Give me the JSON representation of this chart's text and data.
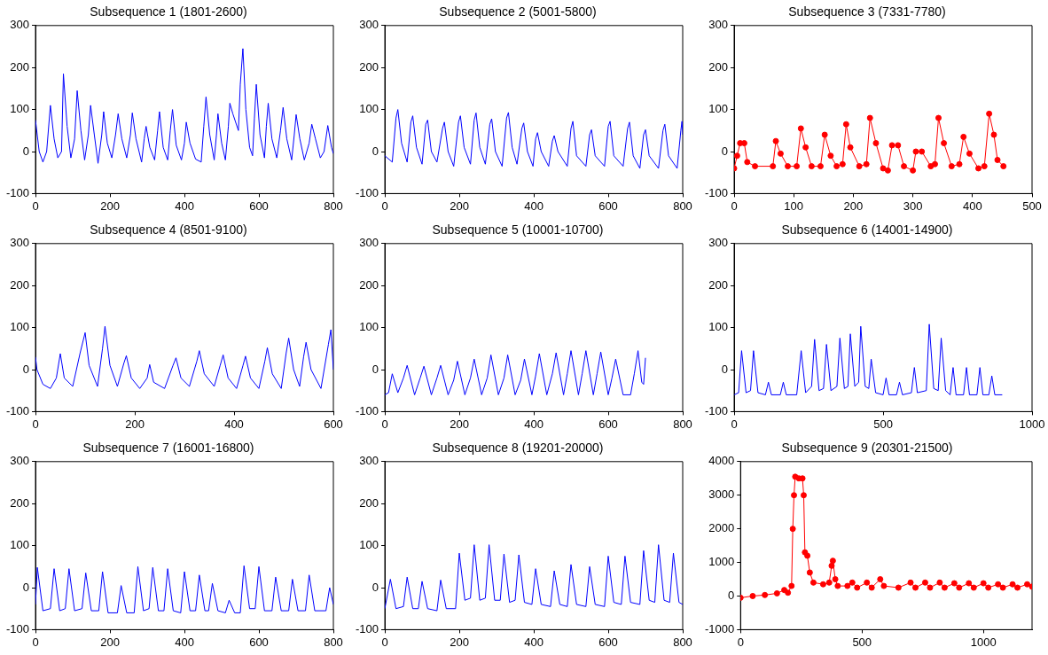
{
  "chart_data": [
    {
      "type": "line",
      "title": "Subsequence 1 (1801-2600)",
      "xlim": [
        0,
        800
      ],
      "xticks": [
        0,
        200,
        400,
        600,
        800
      ],
      "ylim": [
        -100,
        300
      ],
      "yticks": [
        -100,
        0,
        100,
        200,
        300
      ],
      "series": [
        {
          "color": "#0000ff",
          "x": [
            0,
            10,
            20,
            30,
            40,
            50,
            60,
            70,
            75,
            85,
            95,
            105,
            112,
            122,
            132,
            142,
            148,
            158,
            168,
            178,
            183,
            193,
            205,
            215,
            222,
            232,
            245,
            255,
            260,
            270,
            285,
            292,
            297,
            307,
            320,
            328,
            333,
            343,
            355,
            362,
            368,
            378,
            392,
            400,
            405,
            415,
            430,
            445,
            452,
            458,
            468,
            480,
            486,
            490,
            500,
            510,
            518,
            522,
            530,
            545,
            550,
            557,
            565,
            575,
            583,
            588,
            593,
            603,
            615,
            620,
            625,
            635,
            648,
            658,
            665,
            675,
            688,
            695,
            700,
            710,
            722,
            735,
            742,
            752,
            765,
            775,
            785,
            795,
            800
          ],
          "values": [
            75,
            0,
            -25,
            0,
            110,
            30,
            -15,
            0,
            185,
            60,
            -15,
            30,
            145,
            50,
            -20,
            40,
            110,
            40,
            -28,
            40,
            95,
            20,
            -15,
            40,
            90,
            30,
            -15,
            40,
            92,
            30,
            -25,
            30,
            60,
            10,
            -20,
            50,
            95,
            10,
            -20,
            50,
            100,
            15,
            -20,
            20,
            70,
            20,
            -18,
            -25,
            60,
            130,
            40,
            -20,
            40,
            90,
            20,
            -20,
            60,
            115,
            90,
            50,
            160,
            245,
            100,
            10,
            -10,
            80,
            160,
            40,
            -15,
            60,
            115,
            30,
            -15,
            50,
            105,
            30,
            -20,
            40,
            88,
            30,
            -20,
            20,
            65,
            30,
            -15,
            0,
            62,
            10,
            -5
          ]
        }
      ]
    },
    {
      "type": "line",
      "title": "Subsequence 2 (5001-5800)",
      "xlim": [
        0,
        800
      ],
      "xticks": [
        0,
        200,
        400,
        600,
        800
      ],
      "ylim": [
        -100,
        300
      ],
      "yticks": [
        -100,
        0,
        100,
        200,
        300
      ],
      "series": [
        {
          "color": "#0000ff",
          "x": [
            0,
            20,
            30,
            35,
            45,
            60,
            70,
            75,
            85,
            100,
            110,
            115,
            125,
            140,
            155,
            160,
            170,
            185,
            198,
            203,
            213,
            230,
            240,
            245,
            255,
            270,
            282,
            287,
            297,
            315,
            327,
            332,
            342,
            355,
            368,
            373,
            383,
            398,
            405,
            410,
            420,
            440,
            450,
            455,
            465,
            490,
            500,
            505,
            515,
            540,
            550,
            555,
            565,
            590,
            600,
            605,
            615,
            640,
            652,
            657,
            667,
            685,
            695,
            700,
            710,
            735,
            747,
            752,
            762,
            785,
            795,
            798,
            800
          ],
          "values": [
            -10,
            -25,
            80,
            100,
            20,
            -25,
            70,
            85,
            10,
            -30,
            65,
            75,
            0,
            -25,
            55,
            70,
            0,
            -35,
            70,
            85,
            10,
            -30,
            75,
            92,
            10,
            -30,
            65,
            78,
            0,
            -35,
            80,
            93,
            10,
            -30,
            55,
            68,
            0,
            -35,
            30,
            45,
            0,
            -35,
            25,
            38,
            0,
            -35,
            55,
            72,
            -10,
            -35,
            40,
            52,
            -10,
            -35,
            60,
            72,
            -10,
            -35,
            55,
            70,
            -10,
            -40,
            40,
            52,
            -10,
            -40,
            50,
            65,
            -10,
            -40,
            50,
            72,
            40
          ]
        }
      ]
    },
    {
      "type": "line",
      "title": "Subsequence 3 (7331-7780)",
      "xlim": [
        0,
        500
      ],
      "xticks": [
        0,
        100,
        200,
        300,
        400,
        500
      ],
      "ylim": [
        -100,
        300
      ],
      "yticks": [
        -100,
        0,
        100,
        200,
        300
      ],
      "marker": "circle",
      "series": [
        {
          "color": "#ff0000",
          "x": [
            0,
            5,
            10,
            17,
            22,
            35,
            65,
            70,
            78,
            90,
            105,
            112,
            120,
            130,
            145,
            152,
            162,
            172,
            182,
            188,
            195,
            210,
            222,
            228,
            238,
            250,
            258,
            265,
            275,
            285,
            300,
            305,
            315,
            330,
            337,
            343,
            352,
            365,
            378,
            385,
            395,
            410,
            420,
            428,
            436,
            442,
            452
          ],
          "values": [
            -40,
            -10,
            20,
            20,
            -25,
            -35,
            -35,
            25,
            -5,
            -35,
            -35,
            55,
            10,
            -35,
            -35,
            40,
            -10,
            -35,
            -30,
            65,
            10,
            -35,
            -30,
            80,
            20,
            -40,
            -45,
            15,
            15,
            -35,
            -45,
            0,
            0,
            -35,
            -30,
            80,
            20,
            -35,
            -30,
            35,
            -5,
            -40,
            -35,
            90,
            40,
            -20,
            -35
          ]
        }
      ]
    },
    {
      "type": "line",
      "title": "Subsequence 4 (8501-9100)",
      "xlim": [
        0,
        600
      ],
      "xticks": [
        0,
        200,
        400,
        600
      ],
      "ylim": [
        -100,
        300
      ],
      "yticks": [
        -100,
        0,
        100,
        200,
        300
      ],
      "series": [
        {
          "color": "#0000ff",
          "x": [
            0,
            3,
            15,
            30,
            42,
            50,
            58,
            75,
            90,
            100,
            108,
            125,
            135,
            140,
            150,
            165,
            178,
            183,
            193,
            210,
            225,
            230,
            238,
            260,
            277,
            283,
            293,
            310,
            325,
            330,
            340,
            360,
            372,
            378,
            388,
            405,
            418,
            423,
            433,
            450,
            462,
            467,
            477,
            495,
            505,
            510,
            520,
            532,
            540,
            545,
            555,
            575,
            590,
            595,
            600
          ],
          "values": [
            30,
            0,
            -35,
            -45,
            -20,
            38,
            -20,
            -40,
            40,
            88,
            10,
            -40,
            50,
            103,
            10,
            -40,
            15,
            33,
            -20,
            -45,
            -20,
            12,
            -30,
            -45,
            10,
            28,
            -20,
            -40,
            20,
            45,
            -10,
            -40,
            10,
            35,
            -20,
            -45,
            10,
            32,
            -20,
            -45,
            20,
            52,
            -10,
            -45,
            40,
            75,
            0,
            -40,
            30,
            65,
            0,
            -45,
            60,
            95,
            0
          ]
        }
      ]
    },
    {
      "type": "line",
      "title": "Subsequence 5 (10001-10700)",
      "xlim": [
        0,
        800
      ],
      "xticks": [
        0,
        200,
        400,
        600,
        800
      ],
      "ylim": [
        -100,
        300
      ],
      "yticks": [
        -100,
        0,
        100,
        200,
        300
      ],
      "series": [
        {
          "color": "#0000ff",
          "x": [
            0,
            10,
            20,
            35,
            50,
            60,
            80,
            95,
            105,
            125,
            140,
            150,
            170,
            185,
            195,
            215,
            230,
            240,
            260,
            275,
            285,
            305,
            320,
            330,
            350,
            365,
            375,
            395,
            405,
            415,
            435,
            450,
            460,
            480,
            490,
            500,
            520,
            530,
            540,
            560,
            570,
            580,
            600,
            610,
            620,
            640,
            660,
            670,
            680,
            690,
            695,
            700
          ],
          "values": [
            -60,
            -55,
            -10,
            -55,
            -20,
            10,
            -60,
            -20,
            8,
            -60,
            -20,
            10,
            -60,
            -25,
            20,
            -60,
            -20,
            25,
            -60,
            -20,
            35,
            -60,
            -20,
            35,
            -60,
            -25,
            25,
            -60,
            -15,
            38,
            -60,
            -10,
            40,
            -60,
            -10,
            45,
            -60,
            -10,
            45,
            -60,
            -10,
            42,
            -60,
            -20,
            25,
            -60,
            -60,
            -10,
            45,
            -30,
            -35,
            28
          ]
        }
      ]
    },
    {
      "type": "line",
      "title": "Subsequence 6 (14001-14900)",
      "xlim": [
        0,
        1000
      ],
      "xticks": [
        0,
        500,
        1000
      ],
      "ylim": [
        -100,
        300
      ],
      "yticks": [
        -100,
        0,
        100,
        200,
        300
      ],
      "series": [
        {
          "color": "#0000ff",
          "x": [
            0,
            15,
            25,
            40,
            55,
            65,
            80,
            105,
            115,
            125,
            155,
            165,
            175,
            210,
            225,
            240,
            260,
            270,
            285,
            300,
            310,
            325,
            345,
            355,
            370,
            382,
            390,
            405,
            418,
            425,
            440,
            452,
            460,
            475,
            500,
            510,
            520,
            545,
            555,
            565,
            595,
            605,
            615,
            645,
            655,
            670,
            685,
            695,
            710,
            725,
            735,
            745,
            770,
            780,
            790,
            815,
            825,
            835,
            855,
            865,
            875,
            900
          ],
          "values": [
            -60,
            -55,
            45,
            -55,
            -50,
            45,
            -55,
            -60,
            -30,
            -60,
            -60,
            -30,
            -60,
            -60,
            45,
            -55,
            -40,
            72,
            -50,
            -45,
            60,
            -50,
            -40,
            75,
            -45,
            -40,
            85,
            -40,
            -30,
            103,
            -40,
            -45,
            25,
            -55,
            -60,
            -20,
            -60,
            -60,
            -30,
            -60,
            -55,
            5,
            -55,
            -50,
            108,
            -45,
            -50,
            75,
            -50,
            -60,
            5,
            -60,
            -60,
            5,
            -60,
            -60,
            5,
            -60,
            -60,
            -15,
            -60,
            -60
          ]
        }
      ]
    },
    {
      "type": "line",
      "title": "Subsequence 7 (16001-16800)",
      "xlim": [
        0,
        800
      ],
      "xticks": [
        0,
        200,
        400,
        600,
        800
      ],
      "ylim": [
        -100,
        300
      ],
      "yticks": [
        -100,
        0,
        100,
        200,
        300
      ],
      "series": [
        {
          "color": "#0000ff",
          "x": [
            0,
            5,
            20,
            40,
            50,
            65,
            80,
            90,
            105,
            125,
            135,
            150,
            170,
            180,
            195,
            220,
            230,
            245,
            265,
            275,
            290,
            305,
            315,
            330,
            345,
            355,
            370,
            390,
            400,
            415,
            430,
            440,
            455,
            465,
            475,
            490,
            510,
            520,
            535,
            550,
            560,
            575,
            590,
            600,
            615,
            635,
            645,
            660,
            680,
            690,
            705,
            725,
            735,
            750,
            780,
            790,
            800
          ],
          "values": [
            -40,
            48,
            -55,
            -50,
            45,
            -55,
            -50,
            45,
            -55,
            -50,
            35,
            -55,
            -55,
            38,
            -60,
            -60,
            5,
            -60,
            -60,
            50,
            -55,
            -50,
            48,
            -55,
            -55,
            45,
            -55,
            -60,
            38,
            -55,
            -55,
            30,
            -55,
            -55,
            10,
            -55,
            -60,
            -30,
            -60,
            -60,
            52,
            -50,
            -50,
            50,
            -55,
            -55,
            25,
            -55,
            -55,
            20,
            -55,
            -55,
            30,
            -55,
            -55,
            0,
            -40
          ]
        }
      ]
    },
    {
      "type": "line",
      "title": "Subsequence 8 (19201-20000)",
      "xlim": [
        0,
        800
      ],
      "xticks": [
        0,
        200,
        400,
        600,
        800
      ],
      "ylim": [
        -100,
        300
      ],
      "yticks": [
        -100,
        0,
        100,
        200,
        300
      ],
      "series": [
        {
          "color": "#0000ff",
          "x": [
            0,
            15,
            30,
            50,
            60,
            75,
            90,
            100,
            115,
            140,
            150,
            165,
            190,
            200,
            215,
            230,
            240,
            255,
            270,
            280,
            295,
            310,
            320,
            335,
            350,
            360,
            375,
            395,
            405,
            420,
            445,
            455,
            470,
            490,
            500,
            515,
            540,
            550,
            565,
            590,
            600,
            615,
            635,
            645,
            660,
            685,
            695,
            710,
            725,
            735,
            750,
            765,
            775,
            790,
            800
          ],
          "values": [
            -50,
            20,
            -50,
            -45,
            25,
            -50,
            -50,
            15,
            -50,
            -55,
            18,
            -50,
            -50,
            82,
            -30,
            -25,
            102,
            -30,
            -25,
            102,
            -30,
            -30,
            80,
            -35,
            -30,
            78,
            -35,
            -40,
            45,
            -40,
            -45,
            40,
            -40,
            -45,
            55,
            -40,
            -45,
            50,
            -40,
            -45,
            75,
            -35,
            -40,
            75,
            -35,
            -40,
            88,
            -30,
            -35,
            102,
            -30,
            -35,
            82,
            -35,
            -40
          ]
        }
      ]
    },
    {
      "type": "line",
      "title": "Subsequence 9 (20301-21500)",
      "xlim": [
        0,
        1200
      ],
      "xticks": [
        0,
        500,
        1000
      ],
      "ylim": [
        -1000,
        4000
      ],
      "yticks": [
        -1000,
        0,
        1000,
        2000,
        3000,
        4000
      ],
      "marker": "circle",
      "series": [
        {
          "color": "#ff0000",
          "x": [
            0,
            50,
            100,
            150,
            180,
            195,
            210,
            215,
            220,
            225,
            240,
            255,
            260,
            265,
            275,
            285,
            300,
            340,
            365,
            375,
            380,
            390,
            400,
            440,
            460,
            480,
            520,
            540,
            575,
            590,
            650,
            700,
            720,
            760,
            780,
            820,
            840,
            880,
            900,
            940,
            960,
            1000,
            1020,
            1060,
            1080,
            1120,
            1140,
            1180,
            1200
          ],
          "values": [
            -50,
            0,
            30,
            80,
            180,
            100,
            300,
            2000,
            3000,
            3550,
            3500,
            3500,
            3000,
            1300,
            1200,
            700,
            400,
            350,
            400,
            900,
            1050,
            500,
            300,
            300,
            400,
            250,
            400,
            250,
            500,
            300,
            250,
            400,
            250,
            400,
            250,
            400,
            250,
            380,
            250,
            380,
            250,
            380,
            250,
            350,
            250,
            350,
            250,
            350,
            280
          ]
        }
      ]
    }
  ]
}
